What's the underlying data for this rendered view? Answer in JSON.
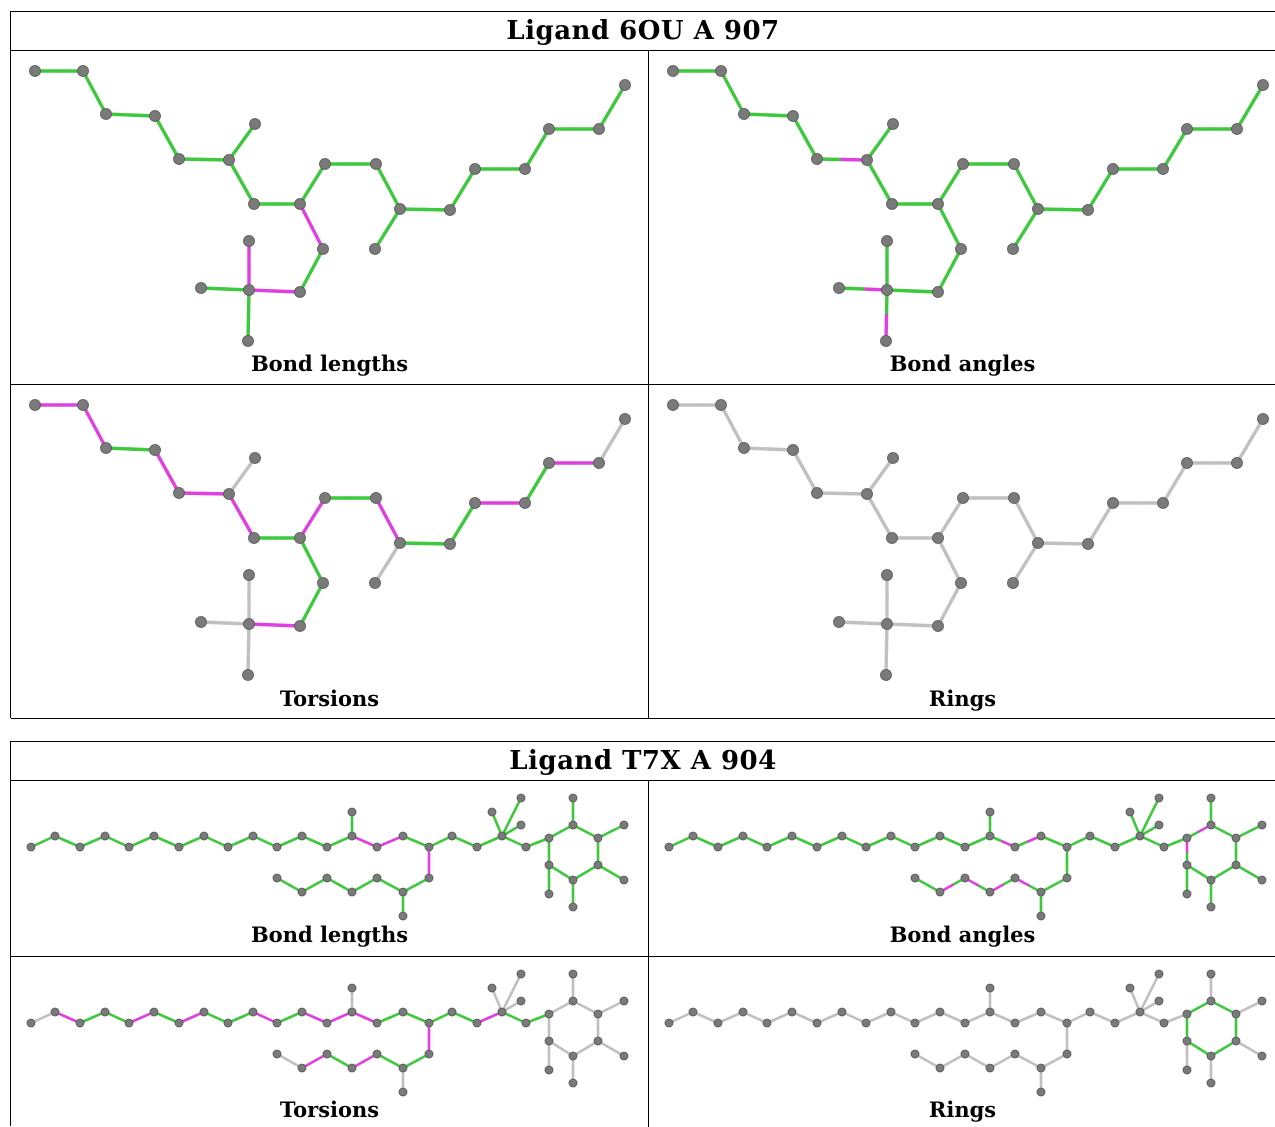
{
  "colors": {
    "good": "#3ec83e",
    "bad": "#e040e0",
    "none": "#c0c0c0",
    "atom": "#7a7a7a"
  },
  "ligands": [
    {
      "title": "Ligand 6OU A 907",
      "panels": [
        "Bond lengths",
        "Bond angles",
        "Torsions",
        "Rings"
      ]
    },
    {
      "title": "Ligand T7X A 904",
      "panels": [
        "Bond lengths",
        "Bond angles",
        "Torsions",
        "Rings"
      ]
    }
  ]
}
